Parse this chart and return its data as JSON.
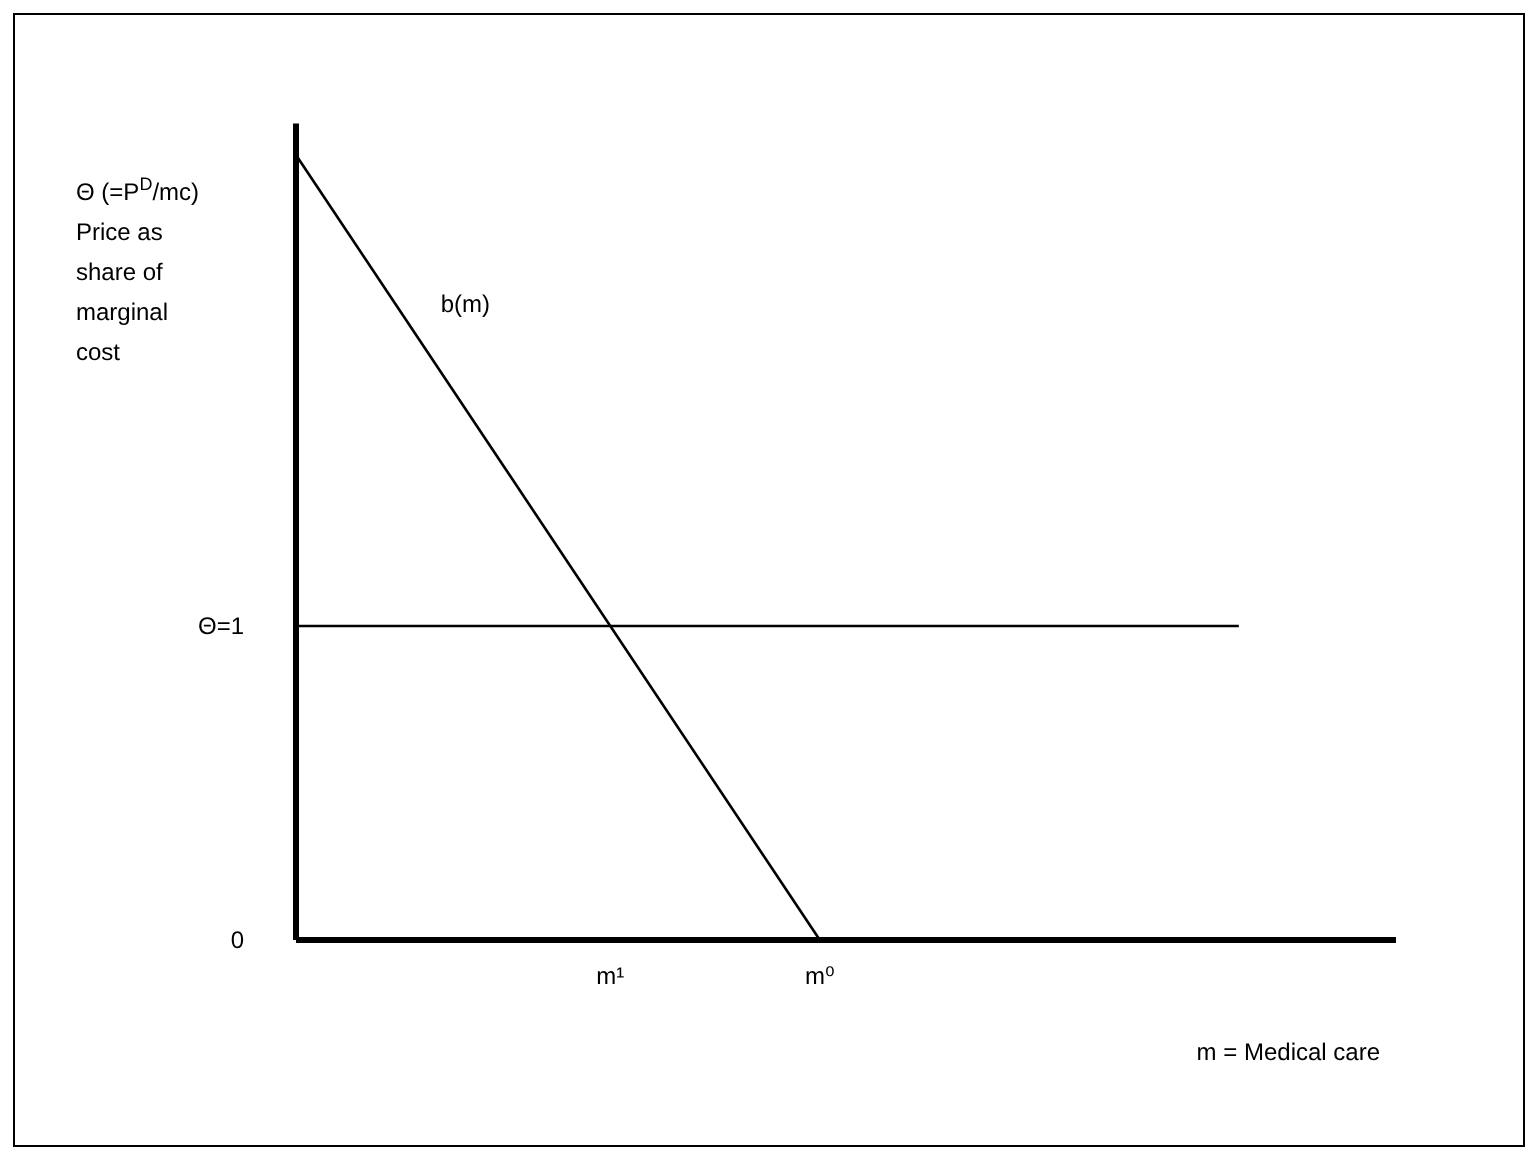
{
  "chart_data": {
    "type": "line",
    "ylabel": "Θ (=P$^{D}$/mc) Price as share of marginal cost",
    "xlabel": "m = Medical care",
    "categories": [
      null,
      null,
      null,
      null,
      null,
      null,
      "m¹",
      null,
      null,
      null,
      "m⁰",
      null,
      null,
      null,
      null,
      null,
      null,
      null,
      null,
      null,
      null,
      null
    ],
    "ylim": [
      0,
      2.6
    ],
    "yticks": [
      0,
      {
        "value": 1,
        "label": "Θ=1"
      }
    ],
    "marker": "none",
    "line_style": "solid",
    "series": [
      {
        "name": "b(m)",
        "color": "#000000",
        "values": [
          2.5,
          2.25,
          2.0,
          1.75,
          1.5,
          1.25,
          1.0,
          0.75,
          0.5,
          0.25,
          0,
          null,
          null,
          null,
          null,
          null,
          null,
          null,
          null,
          null,
          null,
          null
        ]
      },
      {
        "color": "#000000",
        "values": [
          1,
          1,
          1,
          1,
          1,
          1,
          1,
          1,
          1,
          1,
          1,
          1,
          1,
          1,
          1,
          1,
          1,
          1,
          1,
          null,
          null,
          null
        ]
      }
    ]
  }
}
